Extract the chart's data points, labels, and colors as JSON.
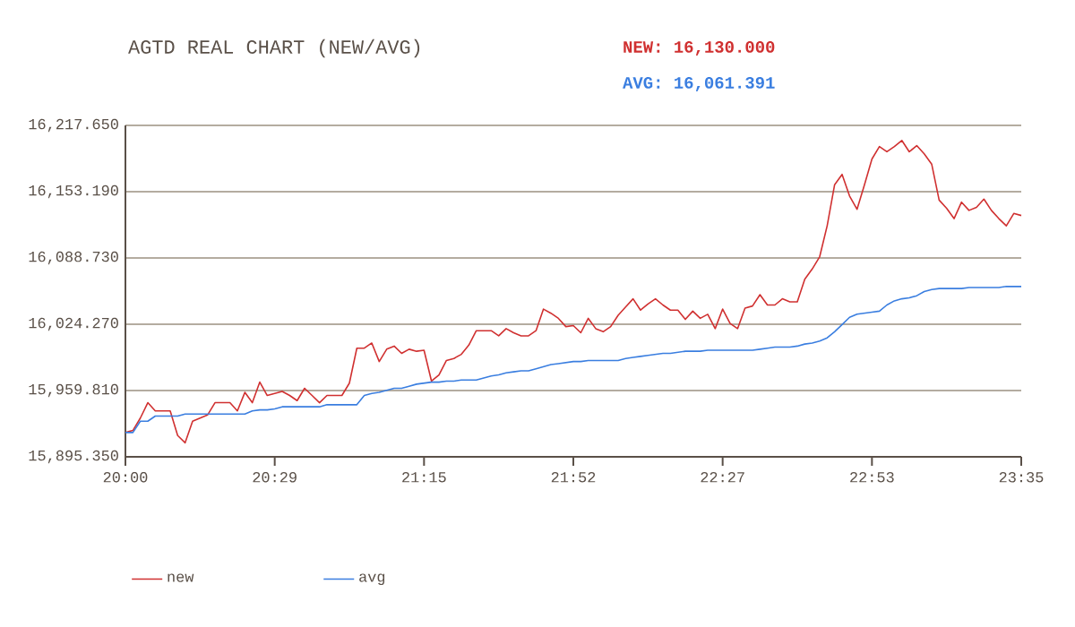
{
  "chart_data": {
    "type": "line",
    "title": "AGTD REAL CHART (NEW/AVG)",
    "annotations": [
      "NEW: 16,130.000",
      "AVG: 16,061.391"
    ],
    "categories": [
      "20:00",
      null,
      null,
      null,
      null,
      null,
      null,
      null,
      null,
      null,
      null,
      null,
      null,
      null,
      null,
      null,
      null,
      null,
      null,
      null,
      "20:29",
      null,
      null,
      null,
      null,
      null,
      null,
      null,
      null,
      null,
      null,
      null,
      null,
      null,
      null,
      null,
      null,
      null,
      null,
      null,
      "21:15",
      null,
      null,
      null,
      null,
      null,
      null,
      null,
      null,
      null,
      null,
      null,
      null,
      null,
      null,
      null,
      null,
      null,
      null,
      null,
      "21:52",
      null,
      null,
      null,
      null,
      null,
      null,
      null,
      null,
      null,
      null,
      null,
      null,
      null,
      null,
      null,
      null,
      null,
      null,
      null,
      "22:27",
      null,
      null,
      null,
      null,
      null,
      null,
      null,
      null,
      null,
      null,
      null,
      null,
      null,
      null,
      null,
      null,
      null,
      null,
      null,
      "22:53",
      null,
      null,
      null,
      null,
      null,
      null,
      null,
      null,
      null,
      null,
      null,
      null,
      null,
      null,
      null,
      null,
      null,
      null,
      null,
      "23:35"
    ],
    "ylim": [
      15895.35,
      16217.65
    ],
    "yticks": [
      {
        "value": 15895.35,
        "label": "15,895.350"
      },
      {
        "value": 15959.81,
        "label": "15,959.810"
      },
      {
        "value": 16024.27,
        "label": "16,024.270"
      },
      {
        "value": 16088.73,
        "label": "16,088.730"
      },
      {
        "value": 16153.19,
        "label": "16,153.190"
      },
      {
        "value": 16217.65,
        "label": "16,217.650"
      }
    ],
    "grid": "y",
    "legend": "bottom left",
    "marker": "none",
    "line_style": "solid",
    "series": [
      {
        "name": "new",
        "color": "#d03030",
        "values": [
          15919,
          15921,
          15933,
          15948,
          15940,
          15940,
          15940,
          15916,
          15909,
          15930,
          15933,
          15936,
          15948,
          15948,
          15948,
          15940,
          15958,
          15948,
          15968,
          15955,
          15957,
          15959,
          15955,
          15950,
          15962,
          15955,
          15948,
          15955,
          15955,
          15955,
          15967,
          16001,
          16001,
          16006,
          15988,
          16000,
          16003,
          15996,
          16000,
          15998,
          15999,
          15969,
          15975,
          15989,
          15991,
          15995,
          16004,
          16018,
          16018,
          16018,
          16013,
          16020,
          16016,
          16013,
          16013,
          16018,
          16039,
          16035,
          16030,
          16022,
          16023,
          16016,
          16030,
          16020,
          16017,
          16022,
          16033,
          16041,
          16049,
          16038,
          16044,
          16049,
          16043,
          16038,
          16038,
          16029,
          16037,
          16030,
          16034,
          16020,
          16039,
          16025,
          16020,
          16040,
          16042,
          16053,
          16043,
          16043,
          16049,
          16046,
          16046,
          16068,
          16078,
          16090,
          16120,
          16160,
          16170,
          16149,
          16136,
          16160,
          16185,
          16197,
          16192,
          16197,
          16203,
          16192,
          16198,
          16190,
          16180,
          16145,
          16137,
          16127,
          16143,
          16135,
          16138,
          16146,
          16135,
          16127,
          16120,
          16132,
          16130
        ]
      },
      {
        "name": "avg",
        "color": "#3a7ee0",
        "values": [
          15919,
          15919,
          15930,
          15930,
          15935,
          15935,
          15935,
          15935,
          15937,
          15937,
          15937,
          15937,
          15937,
          15937,
          15937,
          15937,
          15937,
          15940,
          15941,
          15941,
          15942,
          15944,
          15944,
          15944,
          15944,
          15944,
          15944,
          15946,
          15946,
          15946,
          15946,
          15946,
          15955,
          15957,
          15958,
          15960,
          15962,
          15962,
          15964,
          15966,
          15967,
          15968,
          15968,
          15969,
          15969,
          15970,
          15970,
          15970,
          15972,
          15974,
          15975,
          15977,
          15978,
          15979,
          15979,
          15981,
          15983,
          15985,
          15986,
          15987,
          15988,
          15988,
          15989,
          15989,
          15989,
          15989,
          15989,
          15991,
          15992,
          15993,
          15994,
          15995,
          15996,
          15996,
          15997,
          15998,
          15998,
          15998,
          15999,
          15999,
          15999,
          15999,
          15999,
          15999,
          15999,
          16000,
          16001,
          16002,
          16002,
          16002,
          16003,
          16005,
          16006,
          16008,
          16011,
          16017,
          16024,
          16031,
          16034,
          16035,
          16036,
          16037,
          16043,
          16047,
          16049,
          16050,
          16052,
          16056,
          16058,
          16059,
          16059,
          16059,
          16059,
          16060,
          16060,
          16060,
          16060,
          16060,
          16061,
          16061,
          16061
        ]
      }
    ]
  }
}
